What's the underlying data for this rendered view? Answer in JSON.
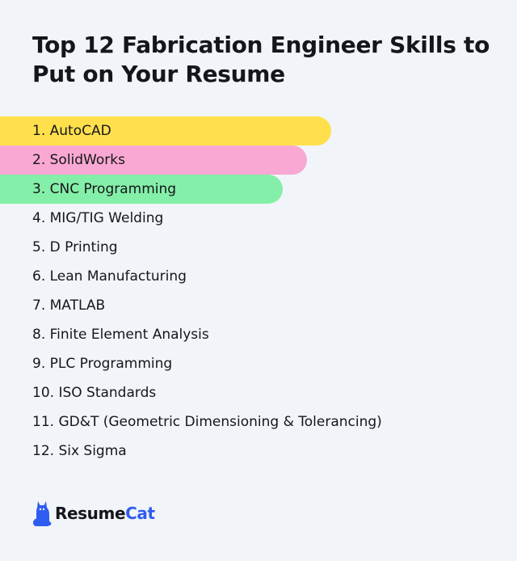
{
  "title": "Top 12 Fabrication Engineer Skills to Put on Your Resume",
  "skills": [
    {
      "label": "1. AutoCAD",
      "color": "#ffe04c"
    },
    {
      "label": "2. SolidWorks",
      "color": "#f8a8d2"
    },
    {
      "label": "3. CNC Programming",
      "color": "#84efa8"
    },
    {
      "label": "4. MIG/TIG Welding"
    },
    {
      "label": "5. D Printing"
    },
    {
      "label": "6. Lean Manufacturing"
    },
    {
      "label": "7. MATLAB"
    },
    {
      "label": "8. Finite Element Analysis"
    },
    {
      "label": "9. PLC Programming"
    },
    {
      "label": "10. ISO Standards"
    },
    {
      "label": "11. GD&T (Geometric Dimensioning & Tolerancing)"
    },
    {
      "label": "12. Six Sigma"
    }
  ],
  "logo": {
    "icon": "cat-icon",
    "text_part1": "Resume",
    "text_part2": "Cat",
    "color_part1": "#15161a",
    "color_part2": "#2f5cf0"
  }
}
